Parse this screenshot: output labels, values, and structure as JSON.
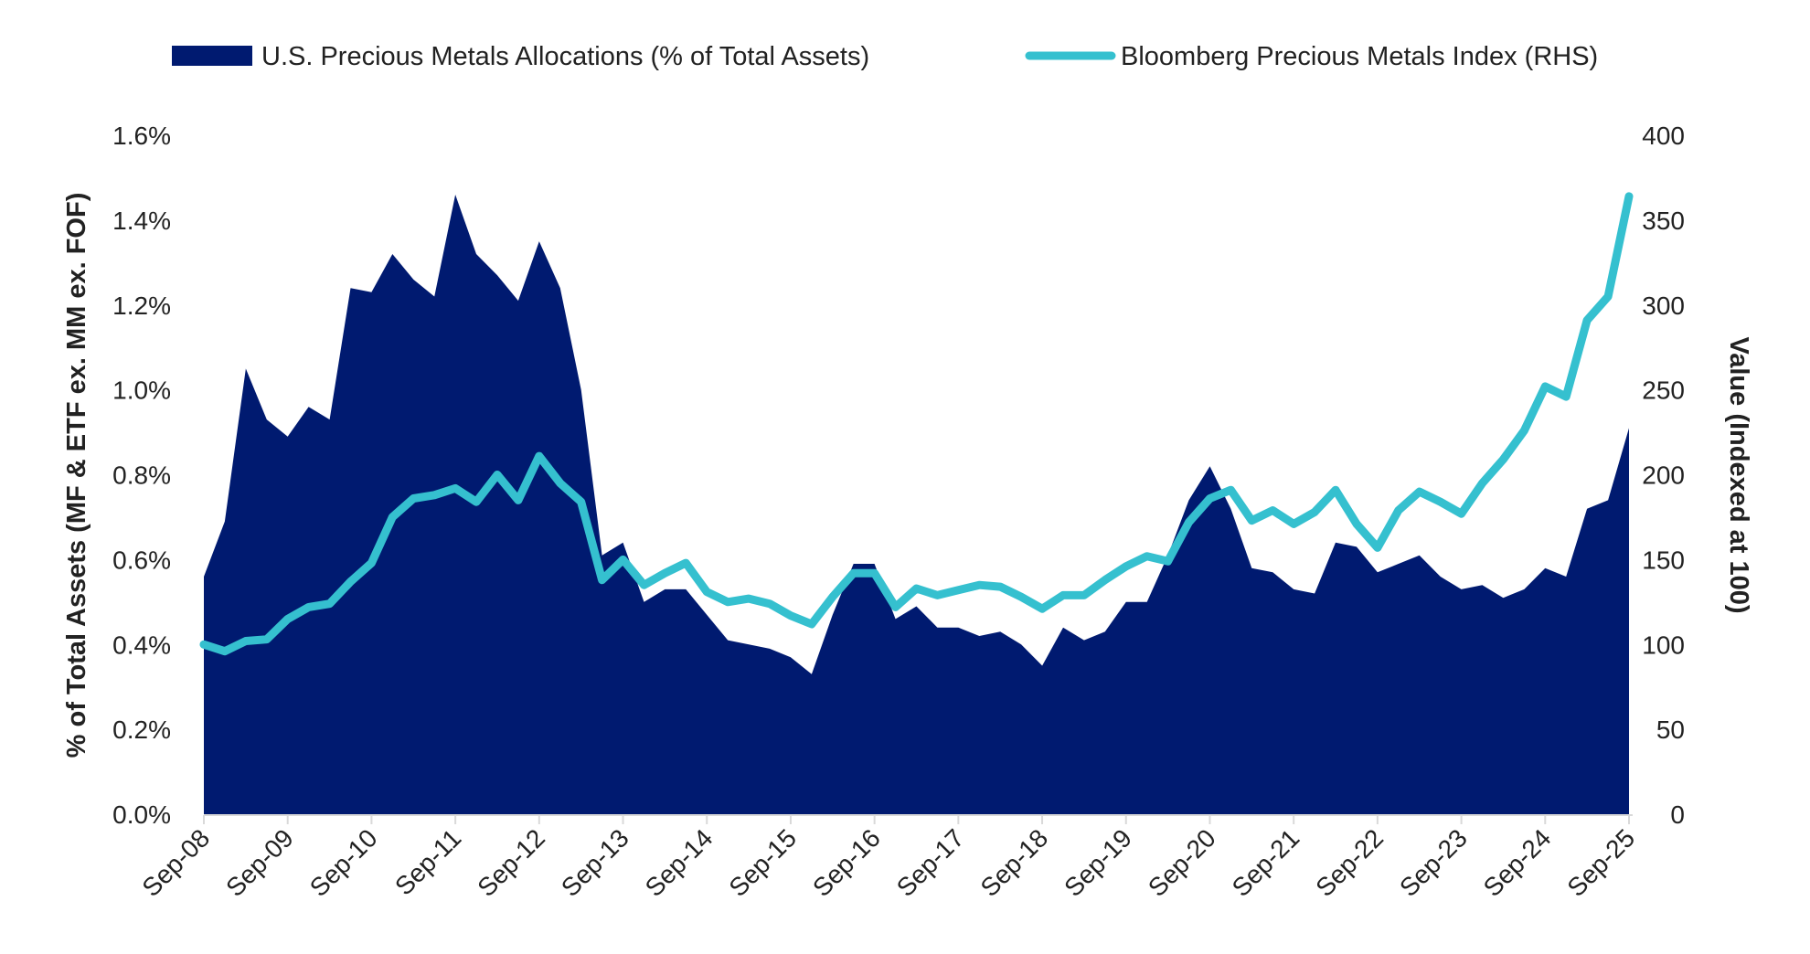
{
  "chart_data": {
    "type": "area+line",
    "legend_position": "top",
    "colors": {
      "area": "#001a70",
      "line": "#35c0cf",
      "axis": "#d9d9d9"
    },
    "ylabel": "% of Total Assets (MF & ETF ex. MM ex. FOF)",
    "y2label": "Value (Indexed at 100)",
    "ylim": [
      0,
      1.6
    ],
    "y2lim": [
      0,
      400
    ],
    "y_ticks": [
      "0.0%",
      "0.2%",
      "0.4%",
      "0.6%",
      "0.8%",
      "1.0%",
      "1.2%",
      "1.4%",
      "1.6%"
    ],
    "y2_ticks": [
      "0",
      "50",
      "100",
      "150",
      "200",
      "250",
      "300",
      "350",
      "400"
    ],
    "x_ticks": [
      "Sep-08",
      "Sep-09",
      "Sep-10",
      "Sep-11",
      "Sep-12",
      "Sep-13",
      "Sep-14",
      "Sep-15",
      "Sep-16",
      "Sep-17",
      "Sep-18",
      "Sep-19",
      "Sep-20",
      "Sep-21",
      "Sep-22",
      "Sep-23",
      "Sep-24",
      "Sep-25"
    ],
    "x": [
      "Sep-08",
      "Dec-08",
      "Mar-09",
      "Jun-09",
      "Sep-09",
      "Dec-09",
      "Mar-10",
      "Jun-10",
      "Sep-10",
      "Dec-10",
      "Mar-11",
      "Jun-11",
      "Sep-11",
      "Dec-11",
      "Mar-12",
      "Jun-12",
      "Sep-12",
      "Dec-12",
      "Mar-13",
      "Jun-13",
      "Sep-13",
      "Dec-13",
      "Mar-14",
      "Jun-14",
      "Sep-14",
      "Dec-14",
      "Mar-15",
      "Jun-15",
      "Sep-15",
      "Dec-15",
      "Mar-16",
      "Jun-16",
      "Sep-16",
      "Dec-16",
      "Mar-17",
      "Jun-17",
      "Sep-17",
      "Dec-17",
      "Mar-18",
      "Jun-18",
      "Sep-18",
      "Dec-18",
      "Mar-19",
      "Jun-19",
      "Sep-19",
      "Dec-19",
      "Mar-20",
      "Jun-20",
      "Sep-20",
      "Dec-20",
      "Mar-21",
      "Jun-21",
      "Sep-21",
      "Dec-21",
      "Mar-22",
      "Jun-22",
      "Sep-22",
      "Dec-22",
      "Mar-23",
      "Jun-23",
      "Sep-23",
      "Dec-23",
      "Mar-24",
      "Jun-24",
      "Sep-24",
      "Dec-24",
      "Mar-25",
      "Jun-25",
      "Sep-25"
    ],
    "series": [
      {
        "name": "U.S. Precious Metals Allocations (% of Total Assets)",
        "type": "area",
        "axis": "left",
        "values": [
          0.56,
          0.69,
          1.05,
          0.93,
          0.89,
          0.96,
          0.93,
          1.24,
          1.23,
          1.32,
          1.26,
          1.22,
          1.46,
          1.32,
          1.27,
          1.21,
          1.35,
          1.24,
          1.0,
          0.61,
          0.64,
          0.5,
          0.53,
          0.53,
          0.47,
          0.41,
          0.4,
          0.39,
          0.37,
          0.33,
          0.47,
          0.59,
          0.59,
          0.46,
          0.49,
          0.44,
          0.44,
          0.42,
          0.43,
          0.4,
          0.35,
          0.44,
          0.41,
          0.43,
          0.5,
          0.5,
          0.61,
          0.74,
          0.82,
          0.72,
          0.58,
          0.57,
          0.53,
          0.52,
          0.64,
          0.63,
          0.57,
          0.59,
          0.61,
          0.56,
          0.53,
          0.54,
          0.51,
          0.53,
          0.58,
          0.56,
          0.72,
          0.74,
          0.91
        ]
      },
      {
        "name": "Bloomberg Precious Metals Index (RHS)",
        "type": "line",
        "axis": "right",
        "values": [
          100,
          96,
          102,
          103,
          115,
          122,
          124,
          137,
          148,
          175,
          186,
          188,
          192,
          184,
          200,
          185,
          211,
          195,
          184,
          138,
          150,
          135,
          142,
          148,
          131,
          125,
          127,
          124,
          117,
          112,
          128,
          142,
          142,
          122,
          133,
          129,
          132,
          135,
          134,
          128,
          121,
          129,
          129,
          138,
          146,
          152,
          149,
          172,
          186,
          191,
          173,
          179,
          171,
          178,
          191,
          171,
          157,
          179,
          190,
          184,
          177,
          195,
          209,
          226,
          252,
          246,
          291,
          305,
          364
        ]
      }
    ]
  }
}
